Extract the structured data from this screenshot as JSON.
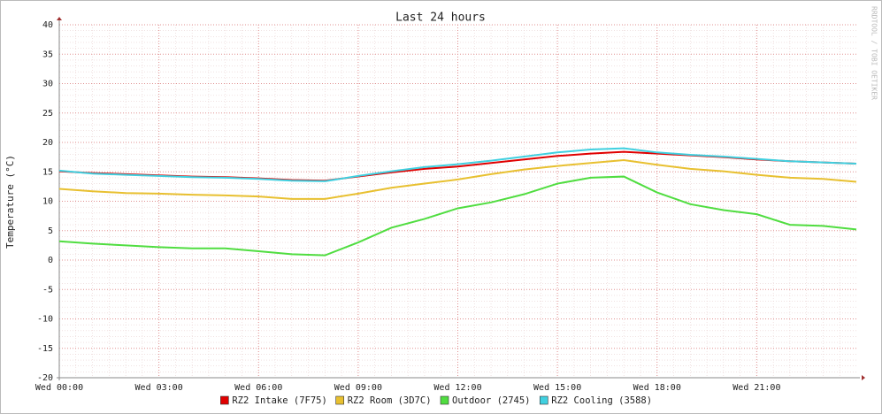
{
  "chart_data": {
    "type": "line",
    "title": "Last 24 hours",
    "y_label": "Temperature (°C)",
    "watermark": "RRDTOOL / TOBI OETIKER",
    "x": [
      0,
      1,
      2,
      3,
      4,
      5,
      6,
      7,
      8,
      9,
      10,
      11,
      12,
      13,
      14,
      15,
      16,
      17,
      18,
      19,
      20,
      21,
      22,
      23,
      24
    ],
    "xlim": [
      0,
      24
    ],
    "xticks": [
      {
        "value": 0,
        "label": "Wed 00:00"
      },
      {
        "value": 3,
        "label": "Wed 03:00"
      },
      {
        "value": 6,
        "label": "Wed 06:00"
      },
      {
        "value": 9,
        "label": "Wed 09:00"
      },
      {
        "value": 12,
        "label": "Wed 12:00"
      },
      {
        "value": 15,
        "label": "Wed 15:00"
      },
      {
        "value": 18,
        "label": "Wed 18:00"
      },
      {
        "value": 21,
        "label": "Wed 21:00"
      }
    ],
    "ylim": [
      -20,
      40
    ],
    "yticks": [
      -20,
      -15,
      -10,
      -5,
      0,
      5,
      10,
      15,
      20,
      25,
      30,
      35,
      40
    ],
    "grid": true,
    "series": [
      {
        "name": "RZ2 Intake (7F75)",
        "color": "#e00000",
        "values": [
          15.1,
          14.8,
          14.6,
          14.4,
          14.2,
          14.1,
          13.9,
          13.6,
          13.5,
          14.2,
          14.9,
          15.5,
          15.9,
          16.5,
          17.1,
          17.7,
          18.1,
          18.4,
          18.1,
          17.8,
          17.5,
          17.1,
          16.8,
          16.6,
          16.4
        ]
      },
      {
        "name": "RZ2 Room (3D7C)",
        "color": "#e8c030",
        "values": [
          12.1,
          11.7,
          11.4,
          11.3,
          11.1,
          11.0,
          10.8,
          10.4,
          10.4,
          11.3,
          12.3,
          13.0,
          13.7,
          14.6,
          15.4,
          16.0,
          16.5,
          17.0,
          16.2,
          15.5,
          15.1,
          14.5,
          14.0,
          13.8,
          13.3
        ]
      },
      {
        "name": "Outdoor (2745)",
        "color": "#50dd40",
        "values": [
          3.2,
          2.8,
          2.5,
          2.2,
          2.0,
          2.0,
          1.5,
          1.0,
          0.8,
          3.0,
          5.5,
          7.0,
          8.8,
          9.8,
          11.2,
          13.0,
          14.0,
          14.2,
          11.5,
          9.5,
          8.5,
          7.8,
          6.0,
          5.8,
          5.2
        ]
      },
      {
        "name": "RZ2 Cooling (3588)",
        "color": "#40d0e0",
        "values": [
          15.2,
          14.7,
          14.5,
          14.3,
          14.1,
          14.0,
          13.8,
          13.5,
          13.4,
          14.3,
          15.1,
          15.8,
          16.3,
          16.9,
          17.6,
          18.3,
          18.8,
          19.0,
          18.3,
          17.9,
          17.6,
          17.2,
          16.8,
          16.6,
          16.4
        ]
      }
    ]
  }
}
